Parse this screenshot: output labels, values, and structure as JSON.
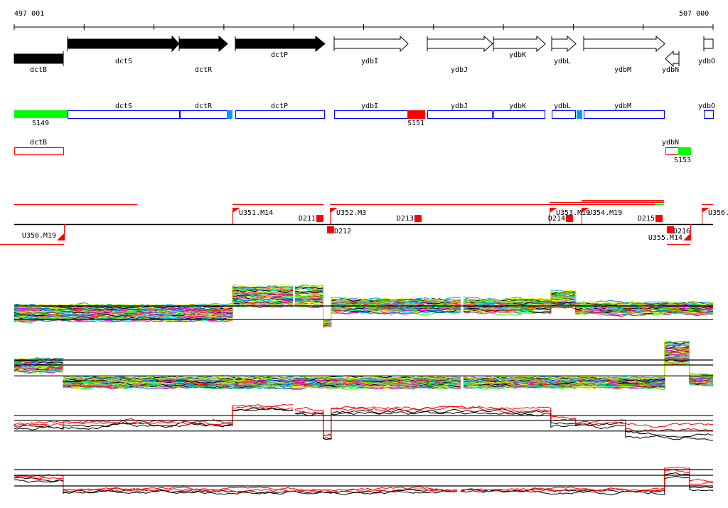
{
  "ruler": {
    "start_label": "497 001",
    "end_label": "507 000",
    "start_bp": 497001,
    "end_bp": 507000
  },
  "genes": [
    "dctB",
    "dctS",
    "dctR",
    "dctP",
    "ydbI",
    "ydbJ",
    "ydbK",
    "ydbL",
    "ydbM",
    "ydbN",
    "ydbO"
  ],
  "transcripts": {
    "labels": [
      "dctS",
      "dctR",
      "dctP",
      "ydbI",
      "ydbJ",
      "ydbK",
      "ydbL",
      "ydbM",
      "ydbO"
    ],
    "sites": [
      "S149",
      "S151"
    ]
  },
  "antisense": {
    "labels": [
      "dctB",
      "ydbN"
    ],
    "site": "S153"
  },
  "segments": {
    "up": [
      "U350.M19",
      "U351.M14",
      "U352.M3",
      "U353.M19",
      "U354.M19",
      "U355.M14",
      "U356."
    ],
    "down": [
      "D211",
      "D212",
      "D213",
      "D214",
      "D215",
      "D216"
    ]
  },
  "colors": {
    "blue": "#0000ff",
    "red": "#ff0000",
    "green": "#00ff00",
    "lightblue": "#0099ff"
  },
  "chart_data": [
    {
      "type": "line",
      "name": "panel-1",
      "lines": 48,
      "segments": [
        [
          497001,
          500123,
          0.35,
          0.35
        ],
        [
          500123,
          500988,
          0.72,
          0.45
        ],
        [
          501018,
          501425,
          0.72,
          0.45
        ],
        [
          501425,
          501537,
          0.1,
          0.1
        ],
        [
          501537,
          503388,
          0.5,
          0.3
        ],
        [
          503429,
          504679,
          0.5,
          0.3
        ],
        [
          504679,
          505035,
          0.65,
          0.35
        ],
        [
          505035,
          507000,
          0.45,
          0.25
        ]
      ],
      "refs": [
        0.5,
        0.2
      ]
    },
    {
      "type": "line",
      "name": "panel-2",
      "lines": 48,
      "segments": [
        [
          497001,
          497703,
          0.5,
          0.25
        ],
        [
          497703,
          503388,
          0.15,
          0.2
        ],
        [
          503429,
          506306,
          0.15,
          0.2
        ],
        [
          506306,
          506663,
          0.75,
          0.45
        ],
        [
          506663,
          507000,
          0.2,
          0.2
        ]
      ],
      "refs": [
        0.6,
        0.5,
        0.28
      ]
    },
    {
      "type": "line",
      "name": "panel-3",
      "lines": 4,
      "segments": [
        [
          497001,
          497703,
          0.4,
          0.1
        ],
        [
          497703,
          500123,
          0.45,
          0.08
        ],
        [
          500123,
          500988,
          0.8,
          0.1
        ],
        [
          501018,
          501425,
          0.72,
          0.1
        ],
        [
          501425,
          501537,
          0.15,
          0.05
        ],
        [
          501537,
          504679,
          0.75,
          0.12
        ],
        [
          504679,
          505035,
          0.5,
          0.2
        ],
        [
          505035,
          505747,
          0.42,
          0.1
        ],
        [
          505747,
          507000,
          0.25,
          0.3
        ]
      ],
      "refs": [
        0.63,
        0.52,
        0.27
      ]
    },
    {
      "type": "line",
      "name": "panel-4",
      "lines": 4,
      "segments": [
        [
          497001,
          497703,
          0.6,
          0.15
        ],
        [
          497703,
          503337,
          0.25,
          0.1
        ],
        [
          503388,
          506306,
          0.25,
          0.1
        ],
        [
          506306,
          506663,
          0.75,
          0.3
        ],
        [
          506663,
          507000,
          0.4,
          0.3
        ]
      ],
      "refs": [
        0.84,
        0.68,
        0.38
      ]
    }
  ]
}
